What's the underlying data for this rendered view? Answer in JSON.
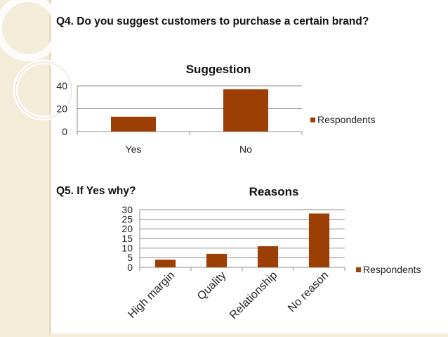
{
  "slide": {
    "q4_text": "Q4. Do you suggest customers to purchase a certain brand?",
    "q5_text": "Q5. If Yes why?"
  },
  "colors": {
    "bar": "#9c3f05",
    "band": "#f3ecd9",
    "grid": "#8c8c8c"
  },
  "chart_data": [
    {
      "type": "bar",
      "title": "Suggestion",
      "categories": [
        "Yes",
        "No"
      ],
      "series": [
        {
          "name": "Respondents",
          "values": [
            13,
            37
          ]
        }
      ],
      "ylim": [
        0,
        40
      ],
      "yticks": [
        0,
        20,
        40
      ],
      "grid": true,
      "legend": "right",
      "xlabel": "",
      "ylabel": ""
    },
    {
      "type": "bar",
      "title": "Reasons",
      "categories": [
        "High margin",
        "Quality",
        "Relationship",
        "No reason"
      ],
      "series": [
        {
          "name": "Respondents",
          "values": [
            4,
            7,
            11,
            28
          ]
        }
      ],
      "ylim": [
        0,
        30
      ],
      "yticks": [
        0,
        5,
        10,
        15,
        20,
        25,
        30
      ],
      "grid": true,
      "legend": "right",
      "xlabel": "",
      "ylabel": ""
    }
  ]
}
